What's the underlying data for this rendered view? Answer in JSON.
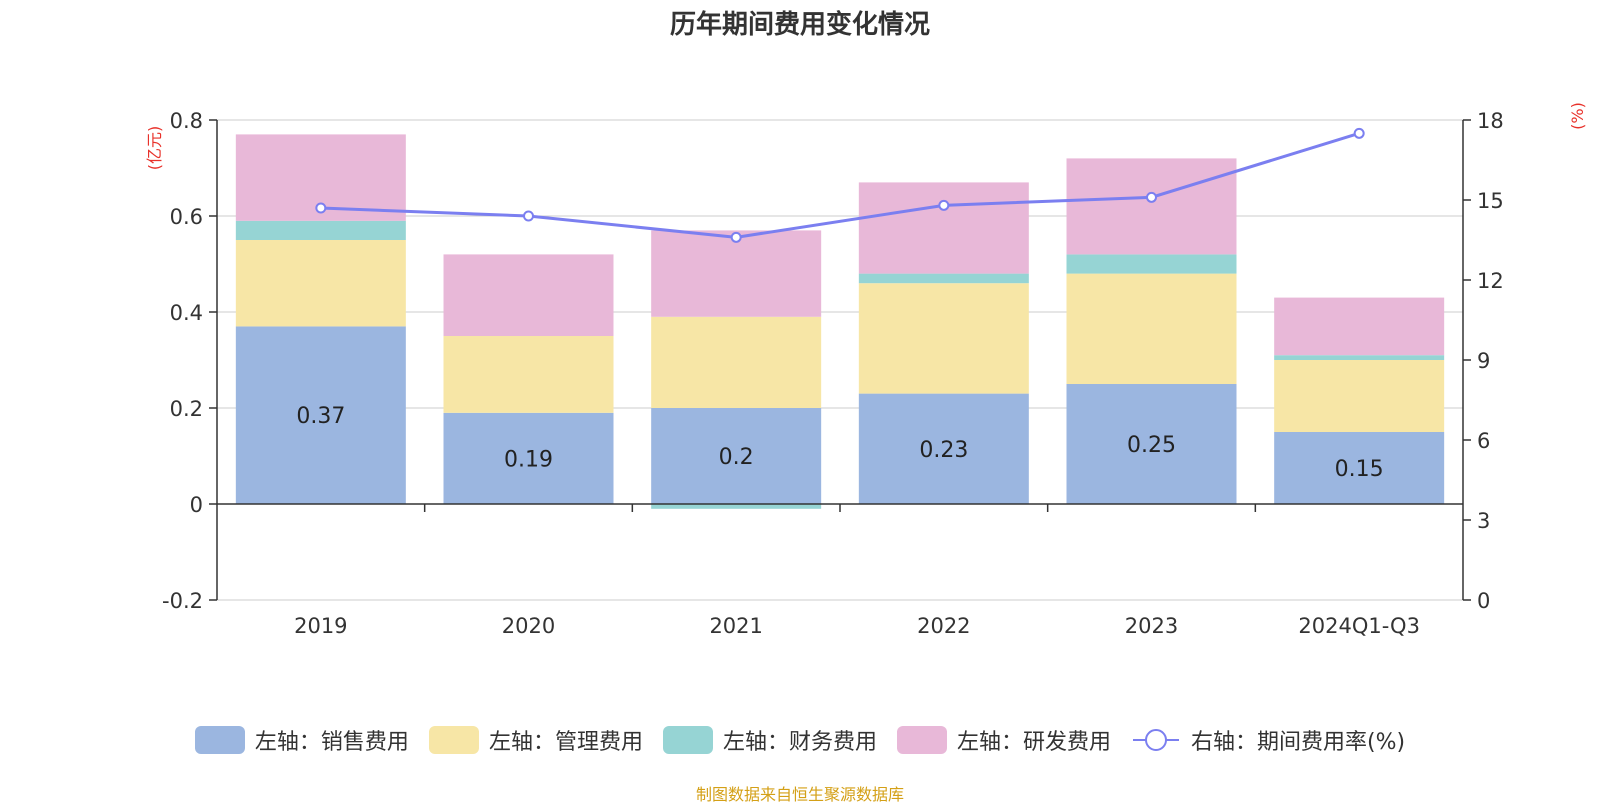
{
  "chart_data": {
    "type": "bar",
    "stacked": true,
    "title": "历年期间费用变化情况",
    "categories": [
      "2019",
      "2020",
      "2021",
      "2022",
      "2023",
      "2024Q1-Q3"
    ],
    "left_axis": {
      "unit": "(亿元)",
      "ylim": [
        -0.2,
        0.8
      ],
      "ticks": [
        "-0.2",
        "0",
        "0.2",
        "0.4",
        "0.6",
        "0.8"
      ]
    },
    "right_axis": {
      "unit": "(%)",
      "ylim": [
        0,
        18
      ],
      "ticks": [
        "0",
        "3",
        "6",
        "9",
        "12",
        "15",
        "18"
      ]
    },
    "series": [
      {
        "name": "左轴：销售费用",
        "axis": "left",
        "color": "#9bb6e0",
        "values": [
          0.37,
          0.19,
          0.2,
          0.23,
          0.25,
          0.15
        ],
        "show_labels": true
      },
      {
        "name": "左轴：管理费用",
        "axis": "left",
        "color": "#f7e6a6",
        "values": [
          0.18,
          0.16,
          0.19,
          0.23,
          0.23,
          0.15
        ]
      },
      {
        "name": "左轴：财务费用",
        "axis": "left",
        "color": "#96d4d4",
        "values": [
          0.04,
          0.0,
          -0.01,
          0.02,
          0.04,
          0.01
        ]
      },
      {
        "name": "左轴：研发费用",
        "axis": "left",
        "color": "#e8b8d8",
        "values": [
          0.18,
          0.17,
          0.18,
          0.19,
          0.2,
          0.12
        ]
      },
      {
        "name": "右轴：期间费用率(%)",
        "axis": "right",
        "type": "line",
        "color": "#7b7ff0",
        "values": [
          14.7,
          14.4,
          13.6,
          14.8,
          15.1,
          17.5
        ]
      }
    ],
    "grid": true,
    "legend_position": "bottom"
  },
  "source_note": "制图数据来自恒生聚源数据库"
}
